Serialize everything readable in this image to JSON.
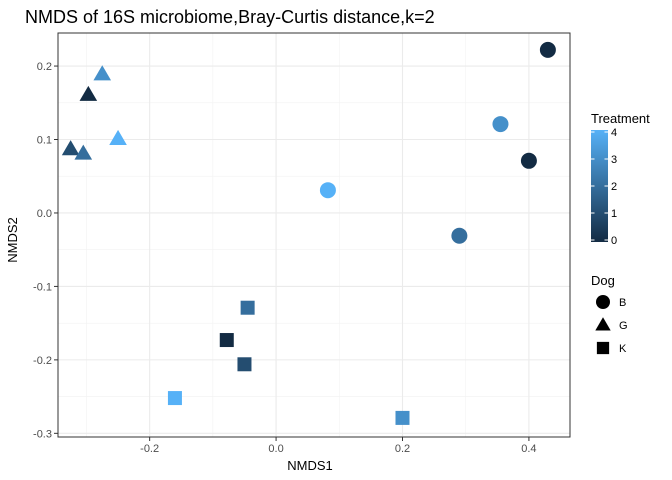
{
  "chart_data": {
    "type": "scatter",
    "title": "NMDS of 16S microbiome,Bray-Curtis distance,k=2",
    "xlabel": "NMDS1",
    "ylabel": "NMDS2",
    "xlim": [
      -0.345,
      0.465
    ],
    "ylim": [
      -0.305,
      0.245
    ],
    "x_ticks": [
      -0.2,
      0.0,
      0.2,
      0.4
    ],
    "x_tick_labels": [
      "-0.2",
      "0.0",
      "0.2",
      "0.4"
    ],
    "y_ticks": [
      0.2,
      0.1,
      0.0,
      -0.1,
      -0.2,
      -0.3
    ],
    "y_tick_labels": [
      "0.2",
      "0.1",
      "0.0",
      "-0.1",
      "-0.2",
      "-0.3"
    ],
    "grid": true,
    "points": [
      {
        "x": 0.43,
        "y": 0.222,
        "dog": "B",
        "treatment": 0
      },
      {
        "x": 0.355,
        "y": 0.121,
        "dog": "B",
        "treatment": 3
      },
      {
        "x": 0.4,
        "y": 0.071,
        "dog": "B",
        "treatment": 0
      },
      {
        "x": 0.082,
        "y": 0.031,
        "dog": "B",
        "treatment": 4
      },
      {
        "x": 0.29,
        "y": -0.031,
        "dog": "B",
        "treatment": 2
      },
      {
        "x": -0.275,
        "y": 0.189,
        "dog": "G",
        "treatment": 3
      },
      {
        "x": -0.297,
        "y": 0.161,
        "dog": "G",
        "treatment": 0
      },
      {
        "x": -0.25,
        "y": 0.101,
        "dog": "G",
        "treatment": 4
      },
      {
        "x": -0.325,
        "y": 0.087,
        "dog": "G",
        "treatment": 1
      },
      {
        "x": -0.305,
        "y": 0.081,
        "dog": "G",
        "treatment": 2
      },
      {
        "x": -0.045,
        "y": -0.129,
        "dog": "K",
        "treatment": 2
      },
      {
        "x": -0.078,
        "y": -0.173,
        "dog": "K",
        "treatment": 0
      },
      {
        "x": -0.05,
        "y": -0.206,
        "dog": "K",
        "treatment": 1
      },
      {
        "x": -0.16,
        "y": -0.252,
        "dog": "K",
        "treatment": 4
      },
      {
        "x": 0.2,
        "y": -0.279,
        "dog": "K",
        "treatment": 3
      }
    ],
    "legend": {
      "placement": "right",
      "color": {
        "title": "Treatment",
        "range": [
          0,
          4
        ],
        "ticks": [
          4,
          3,
          2,
          1,
          0
        ],
        "tick_labels": [
          "4",
          "3",
          "2",
          "1",
          "0"
        ],
        "low_color": "#132b43",
        "high_color": "#56b1f7"
      },
      "shape": {
        "title": "Dog",
        "entries": [
          {
            "label": "B",
            "shape": "circle"
          },
          {
            "label": "G",
            "shape": "triangle"
          },
          {
            "label": "K",
            "shape": "square"
          }
        ]
      }
    }
  }
}
